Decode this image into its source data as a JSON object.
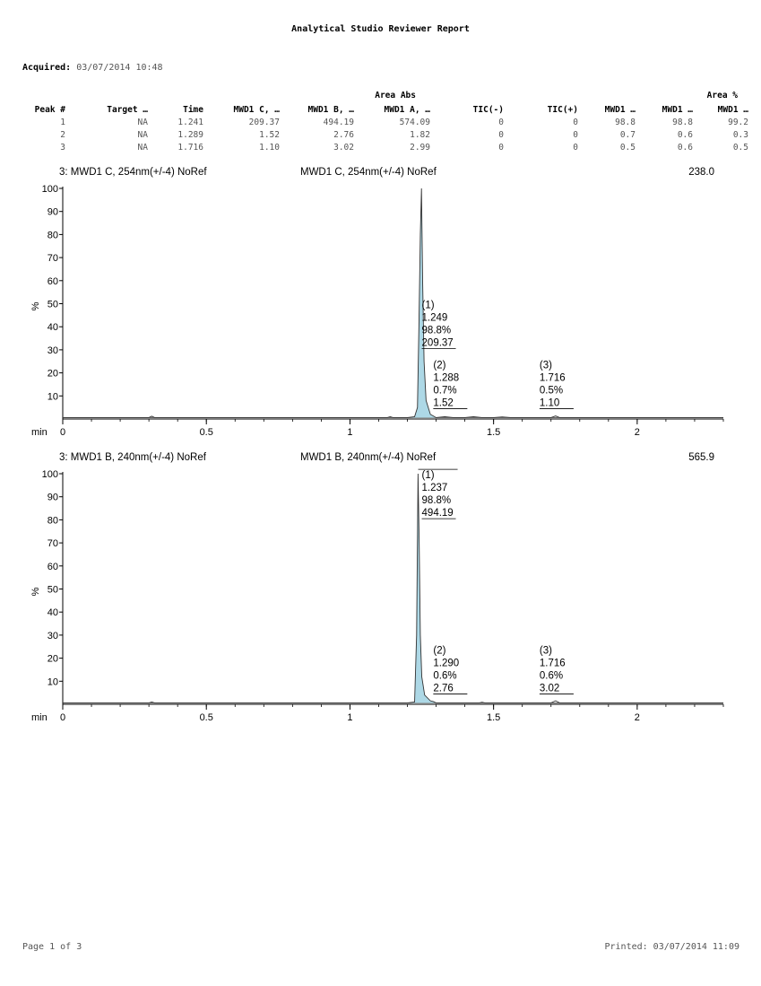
{
  "report": {
    "title": "Analytical Studio Reviewer Report",
    "acquired_label": "Acquired:",
    "acquired_value": "03/07/2014 10:48"
  },
  "table": {
    "group_headers": {
      "area_abs": "Area Abs",
      "area_pct": "Area %"
    },
    "columns": [
      "Peak #",
      "Target …",
      "Time",
      "MWD1 C, …",
      "MWD1 B, …",
      "MWD1 A, …",
      "TIC(-)",
      "TIC(+)",
      "MWD1 …",
      "MWD1 …",
      "MWD1 …"
    ],
    "rows": [
      [
        "1",
        "NA",
        "1.241",
        "209.37",
        "494.19",
        "574.09",
        "0",
        "0",
        "98.8",
        "98.8",
        "99.2"
      ],
      [
        "2",
        "NA",
        "1.289",
        "1.52",
        "2.76",
        "1.82",
        "0",
        "0",
        "0.7",
        "0.6",
        "0.3"
      ],
      [
        "3",
        "NA",
        "1.716",
        "1.10",
        "3.02",
        "2.99",
        "0",
        "0",
        "0.5",
        "0.6",
        "0.5"
      ]
    ]
  },
  "chart_data": [
    {
      "type": "line",
      "title_left": "3: MWD1 C, 254nm(+/-4) NoRef",
      "title_center": "MWD1 C, 254nm(+/-4) NoRef",
      "max_value": "238.0",
      "ylabel": "%",
      "xlabel": "min",
      "xlim": [
        0,
        2.3
      ],
      "ylim": [
        0,
        100
      ],
      "x_ticks": [
        0,
        0.5,
        1,
        1.5,
        2
      ],
      "x_tick_labels": [
        "0",
        "0.5",
        "1",
        "1.5",
        "2"
      ],
      "y_ticks": [
        10,
        20,
        30,
        40,
        50,
        60,
        70,
        80,
        90,
        100
      ],
      "y_tick_labels": [
        "10",
        "20",
        "30",
        "40",
        "50",
        "60",
        "70",
        "80",
        "90",
        "100"
      ],
      "fill_color": "#add8e6",
      "baseline": 0.6,
      "series": [
        {
          "x": [
            0,
            0.3,
            0.31,
            0.32,
            1.13,
            1.14,
            1.15,
            1.2,
            1.225,
            1.235,
            1.24,
            1.245,
            1.249,
            1.253,
            1.258,
            1.265,
            1.28,
            1.29,
            1.3,
            1.33,
            1.36,
            1.4,
            1.43,
            1.46,
            1.5,
            1.53,
            1.56,
            1.7,
            1.716,
            1.73,
            1.8,
            2.3
          ],
          "y": [
            0.6,
            0.6,
            1.2,
            0.6,
            0.6,
            1.0,
            0.6,
            0.6,
            1.0,
            5.0,
            40.0,
            80.0,
            100.0,
            60.0,
            25.0,
            8.0,
            2.0,
            1.3,
            0.6,
            1.0,
            0.6,
            0.6,
            1.0,
            0.6,
            0.6,
            0.9,
            0.6,
            0.6,
            1.3,
            0.6,
            0.6,
            0.6
          ]
        }
      ],
      "annotations": [
        {
          "rt": "1.249",
          "lines": [
            "(1)",
            "1.249",
            "98.8%",
            "209.37"
          ],
          "x": 1.25,
          "y": 48
        },
        {
          "rt": "1.288",
          "lines": [
            "(2)",
            "1.288",
            "0.7%",
            "1.52"
          ],
          "x": 1.29,
          "y": 22
        },
        {
          "rt": "1.716",
          "lines": [
            "(3)",
            "1.716",
            "0.5%",
            "1.10"
          ],
          "x": 1.66,
          "y": 22
        }
      ]
    },
    {
      "type": "line",
      "title_left": "3: MWD1 B, 240nm(+/-4) NoRef",
      "title_center": "MWD1 B, 240nm(+/-4) NoRef",
      "max_value": "565.9",
      "ylabel": "%",
      "xlabel": "min",
      "xlim": [
        0,
        2.3
      ],
      "ylim": [
        0,
        100
      ],
      "x_ticks": [
        0,
        0.5,
        1,
        1.5,
        2
      ],
      "x_tick_labels": [
        "0",
        "0.5",
        "1",
        "1.5",
        "2"
      ],
      "y_ticks": [
        10,
        20,
        30,
        40,
        50,
        60,
        70,
        80,
        90,
        100
      ],
      "y_tick_labels": [
        "10",
        "20",
        "30",
        "40",
        "50",
        "60",
        "70",
        "80",
        "90",
        "100"
      ],
      "fill_color": "#add8e6",
      "baseline": 0.6,
      "series": [
        {
          "x": [
            0,
            0.3,
            0.31,
            0.32,
            1.2,
            1.225,
            1.232,
            1.237,
            1.241,
            1.245,
            1.25,
            1.26,
            1.28,
            1.29,
            1.3,
            1.4,
            1.45,
            1.46,
            1.47,
            1.7,
            1.716,
            1.73,
            2.3
          ],
          "y": [
            0.6,
            0.6,
            1.0,
            0.6,
            0.6,
            1.0,
            30.0,
            100.0,
            70.0,
            30.0,
            12.0,
            4.0,
            1.5,
            1.2,
            0.6,
            0.6,
            0.6,
            0.9,
            0.6,
            0.6,
            1.5,
            0.6,
            0.6
          ]
        }
      ],
      "annotations": [
        {
          "rt": "1.237",
          "lines": [
            "(1)",
            "1.237",
            "98.8%",
            "494.19"
          ],
          "x": 1.25,
          "y": 98
        },
        {
          "rt": "1.290",
          "lines": [
            "(2)",
            "1.290",
            "0.6%",
            "2.76"
          ],
          "x": 1.29,
          "y": 22
        },
        {
          "rt": "1.716",
          "lines": [
            "(3)",
            "1.716",
            "0.6%",
            "3.02"
          ],
          "x": 1.66,
          "y": 22
        }
      ]
    }
  ],
  "footer": {
    "page": "Page 1 of 3",
    "printed": "Printed: 03/07/2014 11:09"
  }
}
